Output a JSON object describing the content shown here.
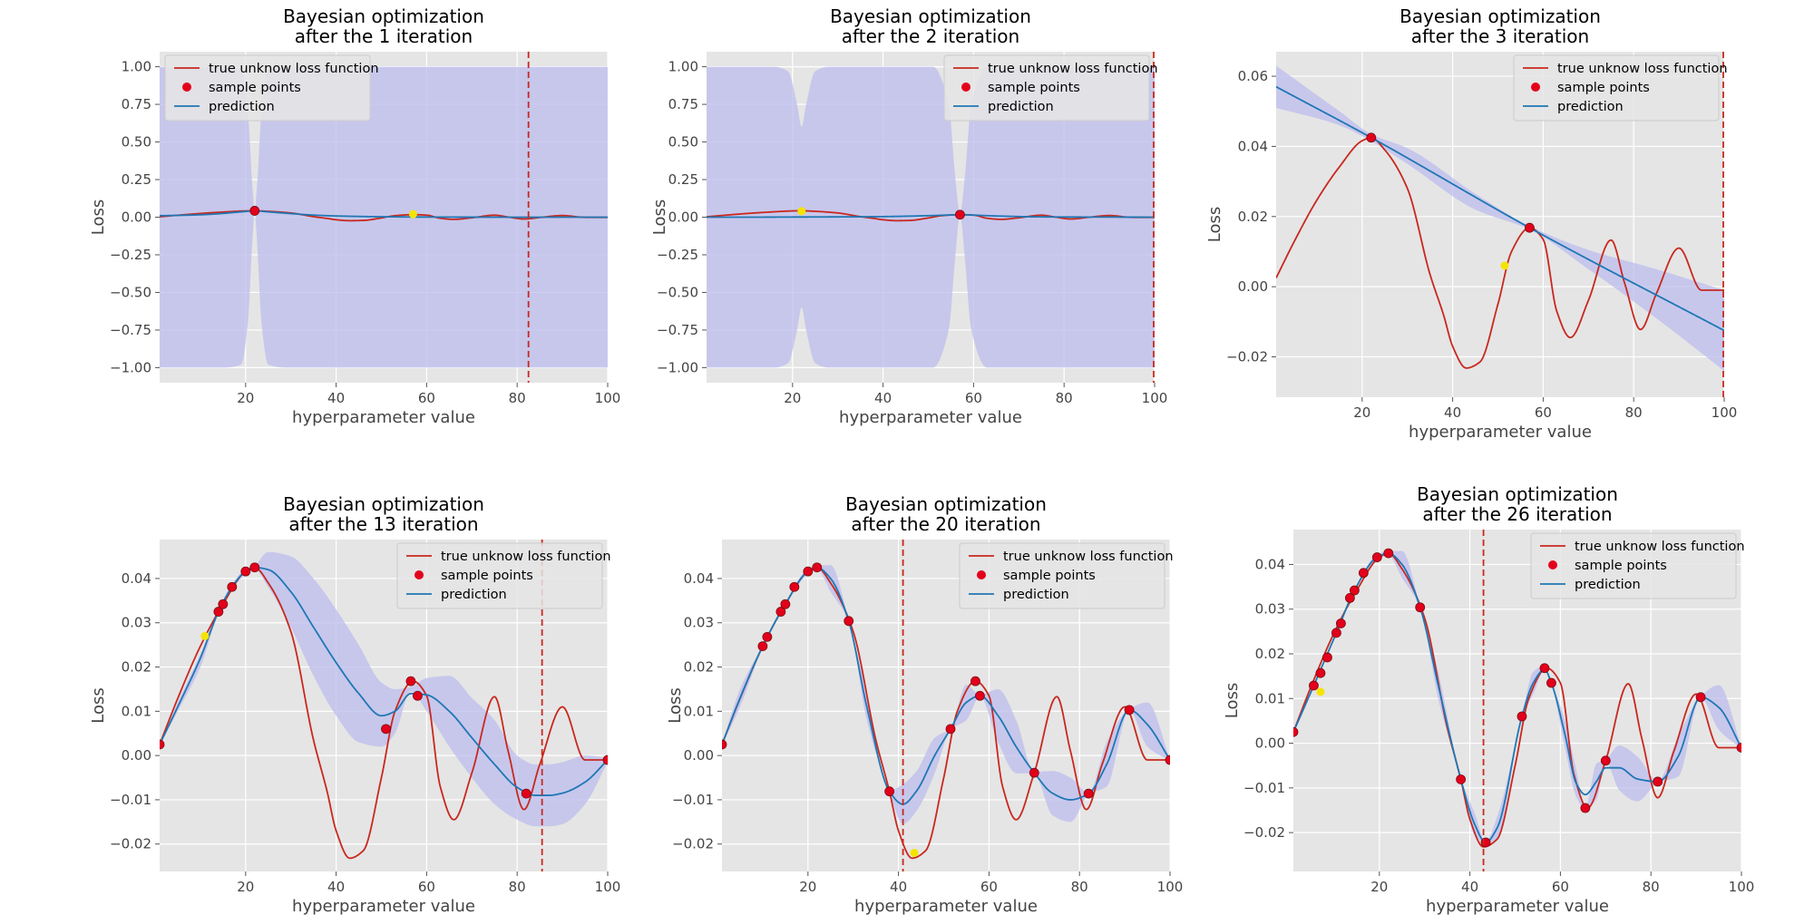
{
  "figure": {
    "colors": {
      "axes_bg": "#E5E5E5",
      "grid": "#FFFFFF",
      "true_line": "#C8281E",
      "prediction": "#1F77B4",
      "band": "#BCBCEE",
      "sample_point": "#E3001B",
      "marker_line": "#C8281E",
      "next_point": "#F5E400"
    }
  },
  "chart_data": [
    {
      "type": "line",
      "title": [
        "Bayesian optimization",
        "after the 1 iteration"
      ],
      "xlabel": "hyperparameter value",
      "ylabel": "Loss",
      "xlim": [
        1,
        100
      ],
      "ylim": [
        -1.1,
        1.1
      ],
      "xticks": [
        20,
        40,
        60,
        80,
        100
      ],
      "yticks": [
        -1.0,
        -0.75,
        -0.5,
        -0.25,
        0.0,
        0.25,
        0.5,
        0.75,
        1.0
      ],
      "ytick_labels": [
        "−1.00",
        "−0.75",
        "−0.50",
        "−0.25",
        "0.00",
        "0.25",
        "0.50",
        "0.75",
        "1.00"
      ],
      "grid": true,
      "legend": {
        "position": "top-left",
        "entries": [
          "true unknow loss function",
          "sample points",
          "prediction"
        ]
      },
      "sample_points": {
        "x": [
          22
        ],
        "y": [
          0.0425
        ]
      },
      "prediction": {
        "x": [
          1,
          5,
          10,
          15,
          18,
          20,
          22,
          24,
          26,
          30,
          35,
          40,
          50,
          60,
          80,
          100
        ],
        "y": [
          0.01,
          0.012,
          0.016,
          0.025,
          0.033,
          0.038,
          0.0425,
          0.038,
          0.033,
          0.024,
          0.014,
          0.008,
          0.003,
          0.001,
          0.0,
          0.0
        ]
      },
      "band": {
        "x": [
          1,
          15,
          19,
          20.5,
          21.5,
          22,
          22.5,
          23.5,
          25,
          29,
          100
        ],
        "lower": [
          -1.0,
          -1.0,
          -0.98,
          -0.7,
          -0.15,
          0.04,
          -0.15,
          -0.7,
          -0.98,
          -1.0,
          -1.0
        ],
        "upper": [
          1.0,
          1.0,
          0.98,
          0.7,
          0.2,
          0.045,
          0.2,
          0.7,
          0.98,
          1.0,
          1.0
        ]
      },
      "next_point": {
        "x": 57,
        "y": 0.02
      },
      "vline": 82.5
    },
    {
      "type": "line",
      "title": [
        "Bayesian optimization",
        "after the 2 iteration"
      ],
      "xlabel": "hyperparameter value",
      "ylabel": "Loss",
      "xlim": [
        1,
        100
      ],
      "ylim": [
        -1.1,
        1.1
      ],
      "xticks": [
        20,
        40,
        60,
        80,
        100
      ],
      "yticks": [
        -1.0,
        -0.75,
        -0.5,
        -0.25,
        0.0,
        0.25,
        0.5,
        0.75,
        1.0
      ],
      "ytick_labels": [
        "−1.00",
        "−0.75",
        "−0.50",
        "−0.25",
        "0.00",
        "0.25",
        "0.50",
        "0.75",
        "1.00"
      ],
      "grid": true,
      "legend": {
        "position": "top-right",
        "entries": [
          "true unknow loss function",
          "sample points",
          "prediction"
        ]
      },
      "sample_points": {
        "x": [
          57
        ],
        "y": [
          0.0168
        ]
      },
      "prediction": {
        "x": [
          1,
          10,
          20,
          30,
          40,
          50,
          55,
          57,
          59,
          65,
          75,
          100
        ],
        "y": [
          0.0,
          0.0,
          0.001,
          0.002,
          0.004,
          0.01,
          0.015,
          0.0168,
          0.015,
          0.008,
          0.002,
          0.0
        ]
      },
      "band": {
        "x": [
          1,
          10,
          16,
          19,
          21,
          22,
          23,
          25,
          28,
          35,
          51,
          54.5,
          56,
          57,
          58,
          59.5,
          63,
          80,
          100
        ],
        "lower": [
          -1.0,
          -1.0,
          -1.0,
          -0.97,
          -0.75,
          -0.6,
          -0.75,
          -0.97,
          -1.0,
          -1.0,
          -1.0,
          -0.75,
          -0.25,
          0.016,
          -0.25,
          -0.75,
          -1.0,
          -1.0,
          -1.0
        ],
        "upper": [
          1.0,
          1.0,
          1.0,
          0.97,
          0.75,
          0.6,
          0.75,
          0.97,
          1.0,
          1.0,
          1.0,
          0.75,
          0.25,
          0.017,
          0.25,
          0.75,
          1.0,
          1.0,
          1.0
        ]
      },
      "next_point": {
        "x": 22,
        "y": 0.04
      },
      "vline": 100
    },
    {
      "type": "line",
      "title": [
        "Bayesian optimization",
        "after the 3 iteration"
      ],
      "xlabel": "hyperparameter value",
      "ylabel": "Loss",
      "xlim": [
        1,
        100
      ],
      "ylim": [
        -0.0315,
        0.067
      ],
      "xticks": [
        20,
        40,
        60,
        80,
        100
      ],
      "yticks": [
        -0.02,
        0.0,
        0.02,
        0.04,
        0.06
      ],
      "ytick_labels": [
        "−0.02",
        "0.00",
        "0.02",
        "0.04",
        "0.06"
      ],
      "grid": true,
      "legend": {
        "position": "top-right",
        "entries": [
          "true unknow loss function",
          "sample points",
          "prediction"
        ]
      },
      "sample_points": {
        "x": [
          22,
          57
        ],
        "y": [
          0.0425,
          0.0168
        ]
      },
      "prediction": {
        "x": [
          1,
          22,
          57,
          100
        ],
        "y": [
          0.057,
          0.0425,
          0.0168,
          -0.0125
        ]
      },
      "band": {
        "x": [
          1,
          15,
          22,
          30,
          45,
          57,
          70,
          85,
          100
        ],
        "lower": [
          0.051,
          0.046,
          0.0415,
          0.035,
          0.022,
          0.0163,
          0.005,
          -0.009,
          -0.024
        ],
        "upper": [
          0.063,
          0.05,
          0.0435,
          0.0395,
          0.0265,
          0.0173,
          0.0105,
          0.005,
          -0.001
        ]
      },
      "next_point": {
        "x": 51.5,
        "y": 0.006
      },
      "vline": 100
    },
    {
      "type": "line",
      "title": [
        "Bayesian optimization",
        "after the 13 iteration"
      ],
      "xlabel": "hyperparameter value",
      "ylabel": "Loss",
      "xlim": [
        1,
        100
      ],
      "ylim": [
        -0.0262,
        0.0488
      ],
      "xticks": [
        20,
        40,
        60,
        80,
        100
      ],
      "yticks": [
        -0.02,
        -0.01,
        0.0,
        0.01,
        0.02,
        0.03,
        0.04
      ],
      "ytick_labels": [
        "−0.02",
        "−0.01",
        "0.00",
        "0.01",
        "0.02",
        "0.03",
        "0.04"
      ],
      "grid": true,
      "legend": {
        "position": "top-right",
        "entries": [
          "true unknow loss function",
          "sample points",
          "prediction"
        ]
      },
      "sample_points": {
        "x": [
          1,
          14,
          15,
          17,
          20,
          22,
          51,
          56.5,
          58,
          82,
          100
        ],
        "y": [
          0.0025,
          0.0325,
          0.0342,
          0.0381,
          0.0416,
          0.0425,
          0.006,
          0.0168,
          0.0135,
          -0.0086,
          -0.001
        ]
      },
      "prediction": {
        "x": [
          1,
          5,
          10,
          14,
          17,
          20,
          22,
          25,
          30,
          35,
          40,
          45,
          50,
          53,
          56.5,
          60,
          65,
          70,
          75,
          80,
          84,
          87,
          90,
          95,
          100
        ],
        "y": [
          0.0025,
          0.011,
          0.022,
          0.0325,
          0.0381,
          0.0416,
          0.0425,
          0.042,
          0.037,
          0.029,
          0.021,
          0.014,
          0.009,
          0.01,
          0.014,
          0.0137,
          0.01,
          0.004,
          -0.002,
          -0.0072,
          -0.009,
          -0.009,
          -0.0085,
          -0.006,
          -0.001
        ]
      },
      "band": {
        "x": [
          1,
          5,
          10,
          14,
          17,
          20,
          22,
          25,
          30,
          35,
          40,
          45,
          50,
          53,
          56.5,
          60,
          65,
          70,
          75,
          80,
          84,
          87,
          90,
          95,
          100
        ],
        "lower": [
          0.0023,
          0.01,
          0.02,
          0.032,
          0.0375,
          0.041,
          0.042,
          0.038,
          0.029,
          0.018,
          0.009,
          0.003,
          0.002,
          0.005,
          0.0145,
          0.01,
          0.002,
          -0.005,
          -0.011,
          -0.0145,
          -0.016,
          -0.016,
          -0.0155,
          -0.011,
          -0.0015
        ],
        "upper": [
          0.0027,
          0.012,
          0.023,
          0.033,
          0.0387,
          0.0422,
          0.043,
          0.046,
          0.045,
          0.04,
          0.033,
          0.025,
          0.0165,
          0.015,
          0.0155,
          0.0175,
          0.018,
          0.013,
          0.008,
          0.0,
          -0.002,
          -0.002,
          -0.0015,
          0.0,
          -0.0005
        ]
      },
      "next_point": {
        "x": 11,
        "y": 0.027
      },
      "vline": 85.5
    },
    {
      "type": "line",
      "title": [
        "Bayesian optimization",
        "after the 20 iteration"
      ],
      "xlabel": "hyperparameter value",
      "ylabel": "Loss",
      "xlim": [
        1,
        100
      ],
      "ylim": [
        -0.0262,
        0.0488
      ],
      "xticks": [
        20,
        40,
        60,
        80,
        100
      ],
      "yticks": [
        -0.02,
        -0.01,
        0.0,
        0.01,
        0.02,
        0.03,
        0.04
      ],
      "ytick_labels": [
        "−0.02",
        "−0.01",
        "0.00",
        "0.01",
        "0.02",
        "0.03",
        "0.04"
      ],
      "grid": true,
      "legend": {
        "position": "top-right",
        "entries": [
          "true unknow loss function",
          "sample points",
          "prediction"
        ]
      },
      "sample_points": {
        "x": [
          1,
          10,
          11,
          14,
          15,
          17,
          20,
          22,
          29,
          38,
          51.5,
          57,
          58,
          70,
          82,
          91,
          100
        ],
        "y": [
          0.0025,
          0.0247,
          0.0268,
          0.0325,
          0.0342,
          0.0381,
          0.0416,
          0.0425,
          0.0304,
          -0.0081,
          0.006,
          0.0168,
          0.0135,
          -0.0039,
          -0.0086,
          0.0103,
          -0.001
        ]
      },
      "prediction": {
        "x": [
          1,
          5,
          10,
          15,
          20,
          22,
          25,
          29,
          33,
          38,
          41,
          44,
          48,
          51.5,
          55,
          58,
          62,
          66,
          70,
          74,
          78,
          82,
          86,
          91,
          95,
          100
        ],
        "y": [
          0.0025,
          0.013,
          0.0247,
          0.0342,
          0.0416,
          0.0425,
          0.04,
          0.0304,
          0.011,
          -0.0081,
          -0.011,
          -0.008,
          0.0,
          0.006,
          0.012,
          0.0135,
          0.009,
          0.002,
          -0.0039,
          -0.0085,
          -0.01,
          -0.0086,
          -0.002,
          0.0103,
          0.007,
          -0.001
        ]
      },
      "band": {
        "x": [
          1,
          5,
          10,
          15,
          20,
          22,
          25,
          29,
          33,
          38,
          41,
          44,
          48,
          51.5,
          55,
          58,
          62,
          66,
          70,
          74,
          78,
          82,
          86,
          91,
          95,
          100
        ],
        "lower": [
          0.0023,
          0.011,
          0.0245,
          0.034,
          0.041,
          0.042,
          0.037,
          0.0302,
          0.008,
          -0.0083,
          -0.0155,
          -0.0125,
          -0.004,
          0.0058,
          0.008,
          0.0133,
          0.003,
          -0.004,
          -0.0041,
          -0.0135,
          -0.015,
          -0.0088,
          -0.007,
          0.0101,
          0.002,
          -0.0012
        ],
        "upper": [
          0.0027,
          0.015,
          0.0249,
          0.0344,
          0.0422,
          0.043,
          0.043,
          0.0306,
          0.014,
          -0.0079,
          -0.0065,
          -0.0035,
          0.004,
          0.0062,
          0.016,
          0.0137,
          0.015,
          0.008,
          -0.0037,
          -0.0035,
          -0.005,
          -0.0084,
          0.003,
          0.0105,
          0.012,
          -0.0008
        ]
      },
      "next_point": {
        "x": 43.5,
        "y": -0.022
      },
      "vline": 41
    },
    {
      "type": "line",
      "title": [
        "Bayesian optimization",
        "after the 26 iteration"
      ],
      "xlabel": "hyperparameter value",
      "ylabel": "Loss",
      "xlim": [
        1,
        100
      ],
      "ylim": [
        -0.0287,
        0.0478
      ],
      "xticks": [
        20,
        40,
        60,
        80,
        100
      ],
      "yticks": [
        -0.02,
        -0.01,
        0.0,
        0.01,
        0.02,
        0.03,
        0.04
      ],
      "ytick_labels": [
        "−0.02",
        "−0.01",
        "0.00",
        "0.01",
        "0.02",
        "0.03",
        "0.04"
      ],
      "grid": true,
      "legend": {
        "position": "top-right",
        "entries": [
          "true unknow loss function",
          "sample points",
          "prediction"
        ]
      },
      "sample_points": {
        "x": [
          1,
          5.5,
          7,
          8.5,
          10.5,
          11.5,
          13.5,
          14.5,
          16.5,
          19.5,
          22,
          29,
          38,
          43.5,
          51.5,
          56.5,
          58,
          65.5,
          70,
          81.5,
          91,
          100
        ],
        "y": [
          0.0025,
          0.0129,
          0.0157,
          0.0192,
          0.0247,
          0.0268,
          0.0325,
          0.0342,
          0.0381,
          0.0416,
          0.0425,
          0.0304,
          -0.0081,
          -0.0222,
          0.006,
          0.0168,
          0.0135,
          -0.0145,
          -0.0039,
          -0.0086,
          0.0103,
          -0.001
        ]
      },
      "prediction": {
        "x": [
          1,
          5.5,
          10.5,
          14.5,
          19.5,
          22,
          25,
          29,
          33,
          38,
          41,
          43.5,
          46,
          51.5,
          54,
          56.5,
          58,
          61,
          63.5,
          65.5,
          68,
          70,
          73,
          77,
          81.5,
          86,
          91,
          95,
          100
        ],
        "y": [
          0.0025,
          0.0129,
          0.0247,
          0.0342,
          0.0416,
          0.0425,
          0.04,
          0.0304,
          0.013,
          -0.0081,
          -0.018,
          -0.0222,
          -0.019,
          0.006,
          0.0135,
          0.0165,
          0.0135,
          0.002,
          -0.009,
          -0.0115,
          -0.0085,
          -0.0055,
          -0.0055,
          -0.008,
          -0.0086,
          -0.003,
          0.0103,
          0.008,
          -0.001
        ]
      },
      "band": {
        "x": [
          1,
          5.5,
          10.5,
          14.5,
          19.5,
          22,
          25,
          29,
          33,
          38,
          41,
          43.5,
          46,
          51.5,
          54,
          56.5,
          58,
          61,
          63.5,
          65.5,
          68,
          70,
          73,
          77,
          81.5,
          86,
          91,
          95,
          100
        ],
        "lower": [
          0.0023,
          0.0127,
          0.0245,
          0.034,
          0.041,
          0.042,
          0.037,
          0.0302,
          0.01,
          -0.0083,
          -0.0205,
          -0.0224,
          -0.0215,
          0.0058,
          0.011,
          0.0163,
          0.0133,
          -0.001,
          -0.012,
          -0.0147,
          -0.0125,
          -0.0041,
          -0.0105,
          -0.013,
          -0.0088,
          -0.0075,
          0.0101,
          0.003,
          -0.0012
        ],
        "upper": [
          0.0027,
          0.0131,
          0.0249,
          0.0344,
          0.0422,
          0.043,
          0.043,
          0.0306,
          0.016,
          -0.0079,
          -0.0155,
          -0.022,
          -0.0165,
          0.0062,
          0.016,
          0.0173,
          0.0137,
          0.005,
          -0.006,
          -0.0143,
          -0.0045,
          -0.0037,
          -0.0005,
          -0.003,
          -0.0084,
          0.0015,
          0.0105,
          0.013,
          -0.0008
        ]
      },
      "next_point": {
        "x": 7,
        "y": 0.0115
      },
      "vline": 43
    }
  ]
}
